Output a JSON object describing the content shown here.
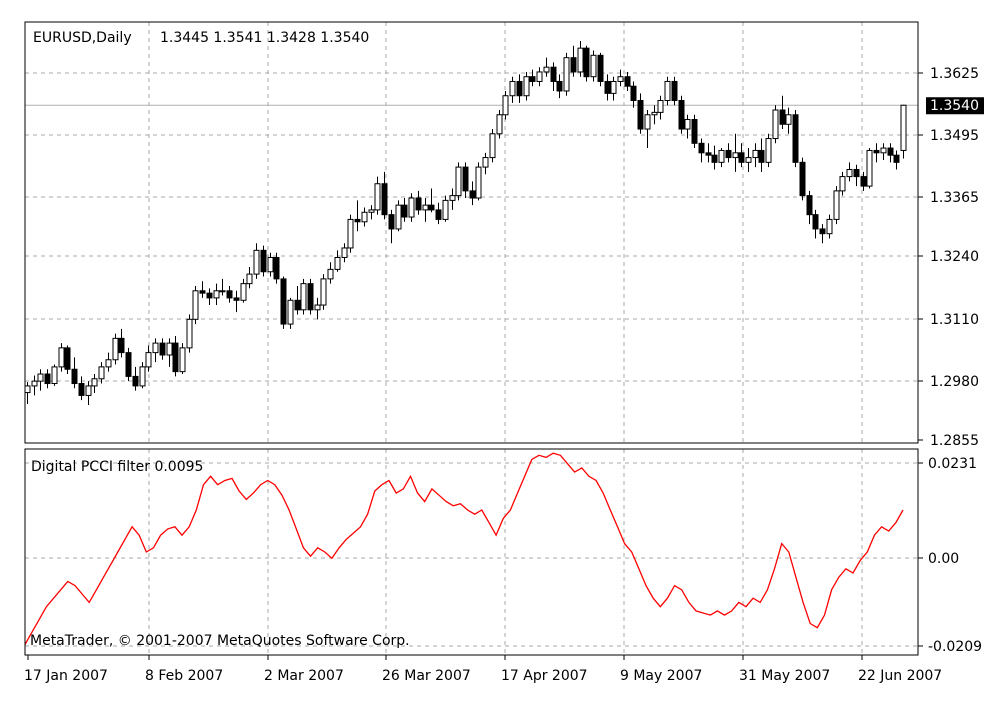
{
  "chart_data": [
    {
      "type": "candlestick",
      "title": "EURUSD,Daily",
      "ohlc_readout": "1.3445 1.3541 1.3428 1.3540",
      "current_price_label": "1.3540",
      "current_price": 1.354,
      "ylim": [
        1.283,
        1.3715
      ],
      "y_ticks": [
        "1.3625",
        "1.3495",
        "1.3365",
        "1.3240",
        "1.3110",
        "1.2980",
        "1.2855"
      ],
      "x_tick_labels": [
        "17 Jan 2007",
        "8 Feb 2007",
        "2 Mar 2007",
        "26 Mar 2007",
        "17 Apr 2007",
        "9 May 2007",
        "31 May 2007",
        "22 Jun 2007"
      ],
      "grid": true,
      "bull_color": "#ffffff",
      "bear_color": "#000000",
      "ohlc": [
        [
          1.2936,
          1.2958,
          1.2912,
          1.295
        ],
        [
          1.295,
          1.2972,
          1.293,
          1.296
        ],
        [
          1.296,
          1.2985,
          1.294,
          1.2975
        ],
        [
          1.2975,
          1.2985,
          1.2945,
          1.2955
        ],
        [
          1.2955,
          1.2995,
          1.295,
          1.299
        ],
        [
          1.299,
          1.304,
          1.298,
          1.303
        ],
        [
          1.303,
          1.3035,
          1.2975,
          1.2985
        ],
        [
          1.2985,
          1.301,
          1.2945,
          1.2955
        ],
        [
          1.2955,
          1.297,
          1.292,
          1.293
        ],
        [
          1.293,
          1.296,
          1.291,
          1.295
        ],
        [
          1.295,
          1.2975,
          1.2935,
          1.2965
        ],
        [
          1.2965,
          1.3,
          1.2955,
          1.299
        ],
        [
          1.299,
          1.302,
          1.298,
          1.3005
        ],
        [
          1.3005,
          1.306,
          1.2995,
          1.305
        ],
        [
          1.305,
          1.307,
          1.301,
          1.302
        ],
        [
          1.302,
          1.303,
          1.296,
          1.297
        ],
        [
          1.297,
          1.299,
          1.294,
          1.295
        ],
        [
          1.295,
          1.3,
          1.2945,
          1.299
        ],
        [
          1.299,
          1.3035,
          1.298,
          1.302
        ],
        [
          1.302,
          1.305,
          1.3,
          1.304
        ],
        [
          1.304,
          1.305,
          1.3005,
          1.3015
        ],
        [
          1.3015,
          1.305,
          1.299,
          1.304
        ],
        [
          1.304,
          1.3055,
          1.297,
          1.298
        ],
        [
          1.298,
          1.304,
          1.2975,
          1.303
        ],
        [
          1.303,
          1.31,
          1.302,
          1.309
        ],
        [
          1.309,
          1.316,
          1.308,
          1.315
        ],
        [
          1.315,
          1.317,
          1.3135,
          1.3145
        ],
        [
          1.3145,
          1.3155,
          1.312,
          1.3135
        ],
        [
          1.3135,
          1.3165,
          1.312,
          1.315
        ],
        [
          1.315,
          1.3175,
          1.314,
          1.315
        ],
        [
          1.315,
          1.316,
          1.3125,
          1.3135
        ],
        [
          1.3135,
          1.315,
          1.3105,
          1.313
        ],
        [
          1.313,
          1.3175,
          1.3125,
          1.3165
        ],
        [
          1.3165,
          1.32,
          1.3155,
          1.3185
        ],
        [
          1.3185,
          1.325,
          1.3175,
          1.3235
        ],
        [
          1.3235,
          1.3245,
          1.318,
          1.319
        ],
        [
          1.319,
          1.323,
          1.318,
          1.322
        ],
        [
          1.322,
          1.323,
          1.3165,
          1.3175
        ],
        [
          1.3175,
          1.318,
          1.307,
          1.308
        ],
        [
          1.308,
          1.3135,
          1.307,
          1.313
        ],
        [
          1.313,
          1.316,
          1.31,
          1.311
        ],
        [
          1.311,
          1.3175,
          1.31,
          1.3165
        ],
        [
          1.3165,
          1.3175,
          1.31,
          1.311
        ],
        [
          1.311,
          1.3135,
          1.309,
          1.312
        ],
        [
          1.312,
          1.3185,
          1.311,
          1.3175
        ],
        [
          1.3175,
          1.321,
          1.3165,
          1.3195
        ],
        [
          1.3195,
          1.3235,
          1.319,
          1.322
        ],
        [
          1.322,
          1.325,
          1.321,
          1.324
        ],
        [
          1.324,
          1.331,
          1.323,
          1.33
        ],
        [
          1.33,
          1.334,
          1.3275,
          1.3295
        ],
        [
          1.3295,
          1.3325,
          1.3285,
          1.3315
        ],
        [
          1.3315,
          1.333,
          1.33,
          1.332
        ],
        [
          1.332,
          1.339,
          1.331,
          1.3375
        ],
        [
          1.3375,
          1.34,
          1.33,
          1.331
        ],
        [
          1.331,
          1.332,
          1.325,
          1.328
        ],
        [
          1.328,
          1.334,
          1.3275,
          1.333
        ],
        [
          1.333,
          1.3345,
          1.3295,
          1.3305
        ],
        [
          1.3305,
          1.3355,
          1.3295,
          1.3345
        ],
        [
          1.3345,
          1.336,
          1.331,
          1.332
        ],
        [
          1.332,
          1.3345,
          1.3295,
          1.333
        ],
        [
          1.333,
          1.3365,
          1.3315,
          1.332
        ],
        [
          1.332,
          1.3335,
          1.329,
          1.33
        ],
        [
          1.33,
          1.335,
          1.3295,
          1.334
        ],
        [
          1.334,
          1.3365,
          1.332,
          1.335
        ],
        [
          1.335,
          1.342,
          1.334,
          1.341
        ],
        [
          1.341,
          1.342,
          1.3345,
          1.336
        ],
        [
          1.336,
          1.338,
          1.333,
          1.3345
        ],
        [
          1.3345,
          1.342,
          1.334,
          1.341
        ],
        [
          1.341,
          1.344,
          1.3395,
          1.343
        ],
        [
          1.343,
          1.349,
          1.342,
          1.348
        ],
        [
          1.348,
          1.353,
          1.347,
          1.352
        ],
        [
          1.352,
          1.357,
          1.351,
          1.356
        ],
        [
          1.356,
          1.36,
          1.3545,
          1.359
        ],
        [
          1.359,
          1.3605,
          1.3545,
          1.356
        ],
        [
          1.356,
          1.361,
          1.355,
          1.36
        ],
        [
          1.36,
          1.3615,
          1.358,
          1.359
        ],
        [
          1.359,
          1.362,
          1.358,
          1.361
        ],
        [
          1.361,
          1.364,
          1.36,
          1.362
        ],
        [
          1.362,
          1.363,
          1.357,
          1.359
        ],
        [
          1.359,
          1.3605,
          1.3555,
          1.357
        ],
        [
          1.357,
          1.365,
          1.356,
          1.364
        ],
        [
          1.364,
          1.3665,
          1.36,
          1.361
        ],
        [
          1.361,
          1.3675,
          1.36,
          1.366
        ],
        [
          1.366,
          1.3665,
          1.359,
          1.36
        ],
        [
          1.36,
          1.3655,
          1.359,
          1.3645
        ],
        [
          1.3645,
          1.365,
          1.358,
          1.359
        ],
        [
          1.359,
          1.3605,
          1.355,
          1.3565
        ],
        [
          1.3565,
          1.36,
          1.355,
          1.359
        ],
        [
          1.359,
          1.3615,
          1.358,
          1.36
        ],
        [
          1.36,
          1.361,
          1.357,
          1.358
        ],
        [
          1.358,
          1.359,
          1.3535,
          1.355
        ],
        [
          1.355,
          1.3565,
          1.348,
          1.349
        ],
        [
          1.349,
          1.353,
          1.345,
          1.352
        ],
        [
          1.352,
          1.354,
          1.35,
          1.3525
        ],
        [
          1.3525,
          1.356,
          1.351,
          1.355
        ],
        [
          1.355,
          1.36,
          1.354,
          1.359
        ],
        [
          1.359,
          1.36,
          1.354,
          1.355
        ],
        [
          1.355,
          1.356,
          1.348,
          1.349
        ],
        [
          1.349,
          1.352,
          1.347,
          1.351
        ],
        [
          1.351,
          1.352,
          1.345,
          1.346
        ],
        [
          1.346,
          1.347,
          1.342,
          1.344
        ],
        [
          1.344,
          1.346,
          1.342,
          1.3435
        ],
        [
          1.3435,
          1.3455,
          1.3405,
          1.342
        ],
        [
          1.342,
          1.345,
          1.341,
          1.3445
        ],
        [
          1.3445,
          1.346,
          1.342,
          1.343
        ],
        [
          1.343,
          1.348,
          1.34,
          1.344
        ],
        [
          1.344,
          1.346,
          1.341,
          1.342
        ],
        [
          1.342,
          1.345,
          1.34,
          1.343
        ],
        [
          1.343,
          1.346,
          1.341,
          1.3445
        ],
        [
          1.3445,
          1.347,
          1.34,
          1.342
        ],
        [
          1.342,
          1.348,
          1.341,
          1.347
        ],
        [
          1.347,
          1.354,
          1.346,
          1.353
        ],
        [
          1.353,
          1.356,
          1.349,
          1.35
        ],
        [
          1.35,
          1.3535,
          1.348,
          1.352
        ],
        [
          1.352,
          1.353,
          1.341,
          1.342
        ],
        [
          1.342,
          1.343,
          1.334,
          1.335
        ],
        [
          1.335,
          1.336,
          1.329,
          1.331
        ],
        [
          1.331,
          1.332,
          1.326,
          1.328
        ],
        [
          1.328,
          1.329,
          1.325,
          1.327
        ],
        [
          1.327,
          1.331,
          1.326,
          1.33
        ],
        [
          1.33,
          1.337,
          1.329,
          1.336
        ],
        [
          1.336,
          1.34,
          1.335,
          1.339
        ],
        [
          1.339,
          1.342,
          1.338,
          1.3405
        ],
        [
          1.3405,
          1.3415,
          1.337,
          1.339
        ],
        [
          1.339,
          1.34,
          1.336,
          1.337
        ],
        [
          1.337,
          1.345,
          1.3365,
          1.3445
        ],
        [
          1.3445,
          1.346,
          1.342,
          1.344
        ],
        [
          1.344,
          1.346,
          1.3425,
          1.345
        ],
        [
          1.345,
          1.346,
          1.342,
          1.3435
        ],
        [
          1.3435,
          1.3445,
          1.3405,
          1.342
        ],
        [
          1.3445,
          1.3541,
          1.3428,
          1.354
        ]
      ],
      "ohlc_note": "values estimated from gridlines; last bar equals printed readout"
    },
    {
      "type": "line",
      "title": "Digital PCCI filter 0.0095",
      "ylim": [
        -0.0245,
        0.0245
      ],
      "y_ticks": [
        "0.0231",
        "0.00",
        "-0.0209"
      ],
      "grid": true,
      "color": "#ff0000",
      "values": [
        -0.022,
        -0.019,
        -0.016,
        -0.013,
        -0.011,
        -0.009,
        -0.007,
        -0.008,
        -0.01,
        -0.012,
        -0.009,
        -0.006,
        -0.003,
        0.0,
        0.003,
        0.006,
        0.004,
        0.0,
        0.001,
        0.004,
        0.0055,
        0.006,
        0.004,
        0.006,
        0.01,
        0.016,
        0.018,
        0.016,
        0.017,
        0.0175,
        0.0145,
        0.0125,
        0.014,
        0.016,
        0.017,
        0.016,
        0.0135,
        0.01,
        0.0055,
        0.001,
        -0.001,
        0.001,
        0.0,
        -0.0015,
        0.001,
        0.003,
        0.0045,
        0.006,
        0.009,
        0.0145,
        0.016,
        0.017,
        0.014,
        0.015,
        0.018,
        0.014,
        0.012,
        0.015,
        0.0135,
        0.012,
        0.011,
        0.0115,
        0.01,
        0.009,
        0.01,
        0.007,
        0.004,
        0.008,
        0.01,
        0.014,
        0.018,
        0.022,
        0.023,
        0.0225,
        0.0235,
        0.023,
        0.021,
        0.019,
        0.02,
        0.018,
        0.017,
        0.014,
        0.01,
        0.006,
        0.002,
        0.0,
        -0.004,
        -0.008,
        -0.011,
        -0.013,
        -0.011,
        -0.008,
        -0.009,
        -0.012,
        -0.014,
        -0.0145,
        -0.015,
        -0.014,
        -0.015,
        -0.014,
        -0.012,
        -0.013,
        -0.011,
        -0.012,
        -0.009,
        -0.004,
        0.002,
        0.0,
        -0.006,
        -0.012,
        -0.017,
        -0.018,
        -0.015,
        -0.009,
        -0.006,
        -0.004,
        -0.005,
        -0.002,
        0.0,
        0.004,
        0.006,
        0.005,
        0.007,
        0.01
      ]
    }
  ],
  "copyright": "MetaTrader, © 2001-2007 MetaQuotes Software Corp."
}
